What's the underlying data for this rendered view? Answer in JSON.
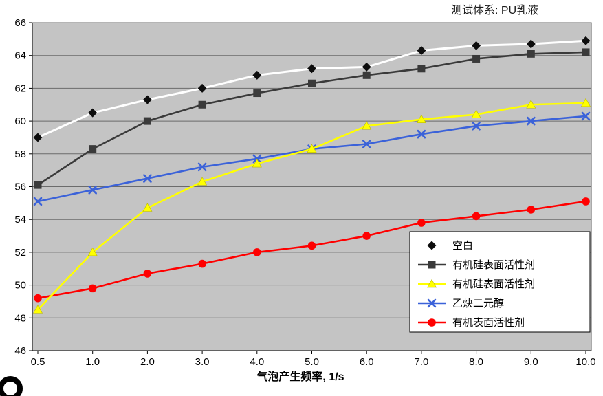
{
  "chart_data": {
    "type": "line",
    "title": "测试体系: PU乳液",
    "xlabel": "气泡产生频率, 1/s",
    "ylabel": "",
    "ylim": [
      46,
      66
    ],
    "ytick_step": 2,
    "categories": [
      "0.5",
      "1.0",
      "2.0",
      "3.0",
      "4.0",
      "5.0",
      "6.0",
      "7.0",
      "8.0",
      "9.0",
      "10.0"
    ],
    "grid": "horizontal",
    "legend_position": "inside-bottom-right",
    "plot_bg": "#c4c4c4",
    "gridline_color": "#6b6b6b",
    "axis_color": "#000000",
    "series": [
      {
        "name": "空白",
        "color": "#ffffff",
        "marker": "diamond",
        "marker_color": "#0d0d0d",
        "values": [
          59.0,
          60.5,
          61.3,
          62.0,
          62.8,
          63.2,
          63.3,
          64.3,
          64.6,
          64.7,
          64.9
        ]
      },
      {
        "name": "有机硅表面活性剂",
        "color": "#3a3a3a",
        "marker": "square",
        "marker_color": "#3a3a3a",
        "values": [
          56.1,
          58.3,
          60.0,
          61.0,
          61.7,
          62.3,
          62.8,
          63.2,
          63.8,
          64.1,
          64.2
        ]
      },
      {
        "name": "有机硅表面活性剂",
        "color": "#ffff00",
        "marker": "triangle",
        "marker_color": "#ffff00",
        "values": [
          48.5,
          52.0,
          54.7,
          56.3,
          57.4,
          58.3,
          59.7,
          60.1,
          60.4,
          61.0,
          61.1
        ]
      },
      {
        "name": "乙炔二元醇",
        "color": "#3b62d9",
        "marker": "x",
        "marker_color": "#3b62d9",
        "values": [
          55.1,
          55.8,
          56.5,
          57.2,
          57.7,
          58.3,
          58.6,
          59.2,
          59.7,
          60.0,
          60.3
        ]
      },
      {
        "name": "有机表面活性剂",
        "color": "#ff0000",
        "marker": "circle",
        "marker_color": "#ff0000",
        "values": [
          49.2,
          49.8,
          50.7,
          51.3,
          52.0,
          52.4,
          53.0,
          53.8,
          54.2,
          54.6,
          55.1
        ]
      }
    ]
  }
}
